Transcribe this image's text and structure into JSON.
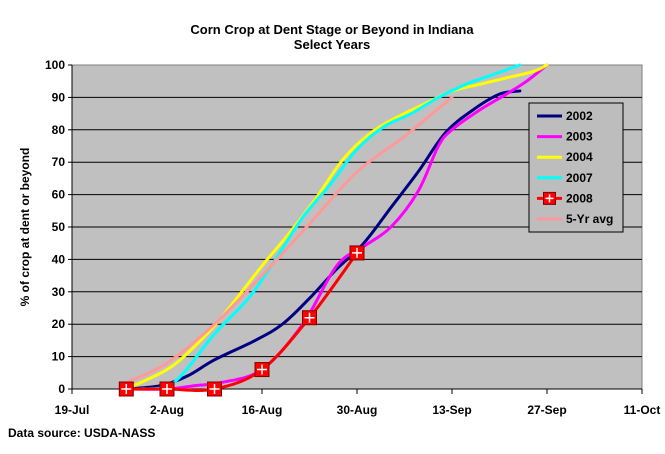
{
  "chart_data": {
    "type": "line",
    "title": "Corn Crop at Dent Stage or Beyond in Indiana",
    "subtitle": "Select Years",
    "ylabel": "% of crop at dent or beyond",
    "xlabel": "",
    "source": "Data source: USDA-NASS",
    "ylim": [
      0,
      100
    ],
    "yticks": [
      0,
      10,
      20,
      30,
      40,
      50,
      60,
      70,
      80,
      90,
      100
    ],
    "xlim": [
      0,
      84
    ],
    "xticks": [
      {
        "x": 0,
        "label": "19-Jul"
      },
      {
        "x": 14,
        "label": "2-Aug"
      },
      {
        "x": 28,
        "label": "16-Aug"
      },
      {
        "x": 42,
        "label": "30-Aug"
      },
      {
        "x": 56,
        "label": "13-Sep"
      },
      {
        "x": 70,
        "label": "27-Sep"
      },
      {
        "x": 84,
        "label": "11-Oct"
      }
    ],
    "grid": true,
    "legend_position": "right",
    "series": [
      {
        "name": "2002",
        "color": "#000080",
        "marker": false,
        "points": [
          [
            8,
            0
          ],
          [
            13,
            1
          ],
          [
            17,
            4
          ],
          [
            21,
            9
          ],
          [
            27,
            15
          ],
          [
            31,
            20
          ],
          [
            35,
            28
          ],
          [
            39,
            37
          ],
          [
            43,
            45
          ],
          [
            47,
            56
          ],
          [
            51,
            67
          ],
          [
            55,
            79
          ],
          [
            59,
            86
          ],
          [
            63,
            91
          ],
          [
            66,
            92
          ]
        ]
      },
      {
        "name": "2003",
        "color": "#ff00ff",
        "marker": false,
        "points": [
          [
            8,
            0
          ],
          [
            14,
            0
          ],
          [
            18,
            1
          ],
          [
            22,
            2
          ],
          [
            28,
            6
          ],
          [
            34,
            20
          ],
          [
            39,
            38
          ],
          [
            43,
            44
          ],
          [
            47,
            50
          ],
          [
            51,
            61
          ],
          [
            54,
            75
          ],
          [
            56,
            80
          ],
          [
            60,
            86
          ],
          [
            64,
            91
          ],
          [
            67,
            95
          ],
          [
            70,
            100
          ]
        ]
      },
      {
        "name": "2004",
        "color": "#ffff00",
        "marker": false,
        "points": [
          [
            8,
            0
          ],
          [
            14,
            6
          ],
          [
            18,
            13
          ],
          [
            22,
            22
          ],
          [
            28,
            38
          ],
          [
            32,
            48
          ],
          [
            36,
            59
          ],
          [
            40,
            71
          ],
          [
            44,
            79
          ],
          [
            48,
            84
          ],
          [
            52,
            88
          ],
          [
            56,
            92
          ],
          [
            60,
            94
          ],
          [
            64,
            96
          ],
          [
            68,
            98
          ],
          [
            70,
            100
          ]
        ]
      },
      {
        "name": "2007",
        "color": "#00ffff",
        "marker": false,
        "points": [
          [
            10,
            0
          ],
          [
            15,
            2
          ],
          [
            21,
            17
          ],
          [
            26,
            28
          ],
          [
            30,
            40
          ],
          [
            34,
            53
          ],
          [
            38,
            63
          ],
          [
            42,
            74
          ],
          [
            46,
            81
          ],
          [
            50,
            85
          ],
          [
            54,
            90
          ],
          [
            58,
            94
          ],
          [
            62,
            97
          ],
          [
            66,
            100
          ]
        ]
      },
      {
        "name": "2008",
        "color": "#ff0000",
        "marker": true,
        "points": [
          [
            8,
            0
          ],
          [
            14,
            0
          ],
          [
            21,
            0
          ],
          [
            28,
            6
          ],
          [
            35,
            22
          ],
          [
            42,
            42
          ]
        ]
      },
      {
        "name": "5-Yr avg",
        "color": "#ff9999",
        "marker": false,
        "points": [
          [
            8,
            2
          ],
          [
            14,
            8
          ],
          [
            21,
            20
          ],
          [
            28,
            35
          ],
          [
            35,
            51
          ],
          [
            42,
            67
          ],
          [
            49,
            78
          ],
          [
            56,
            90
          ]
        ]
      }
    ]
  }
}
